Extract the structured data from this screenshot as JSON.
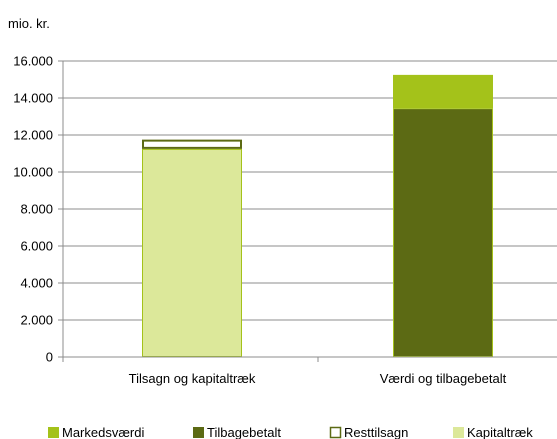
{
  "chart_data": {
    "type": "bar",
    "stacked": true,
    "unit_label": "mio. kr.",
    "categories": [
      "Tilsagn og kapitaltræk",
      "Værdi og tilbagebetalt"
    ],
    "ylim": [
      0,
      16000
    ],
    "y_ticks": [
      0,
      2000,
      4000,
      6000,
      8000,
      10000,
      12000,
      14000,
      16000
    ],
    "y_tick_labels": [
      "0",
      "2.000",
      "4.000",
      "6.000",
      "8.000",
      "10.000",
      "12.000",
      "14.000",
      "16.000"
    ],
    "grid": true,
    "legend_position": "bottom",
    "series": [
      {
        "name": "Kapitaltræk",
        "color": "#dce89a",
        "stroke": "#a4c21a",
        "values": [
          11250,
          0
        ]
      },
      {
        "name": "Resttilsagn",
        "color": "#ffffff",
        "stroke": "#5c6a14",
        "values": [
          500,
          0
        ]
      },
      {
        "name": "Tilbagebetalt",
        "color": "#5c6a14",
        "stroke": "#a4c21a",
        "values": [
          0,
          13450
        ]
      },
      {
        "name": "Markedsværdi",
        "color": "#a4c21a",
        "stroke": "#a4c21a",
        "values": [
          0,
          1800
        ]
      }
    ],
    "legend_order": [
      "Markedsværdi",
      "Tilbagebetalt",
      "Resttilsagn",
      "Kapitaltræk"
    ]
  }
}
